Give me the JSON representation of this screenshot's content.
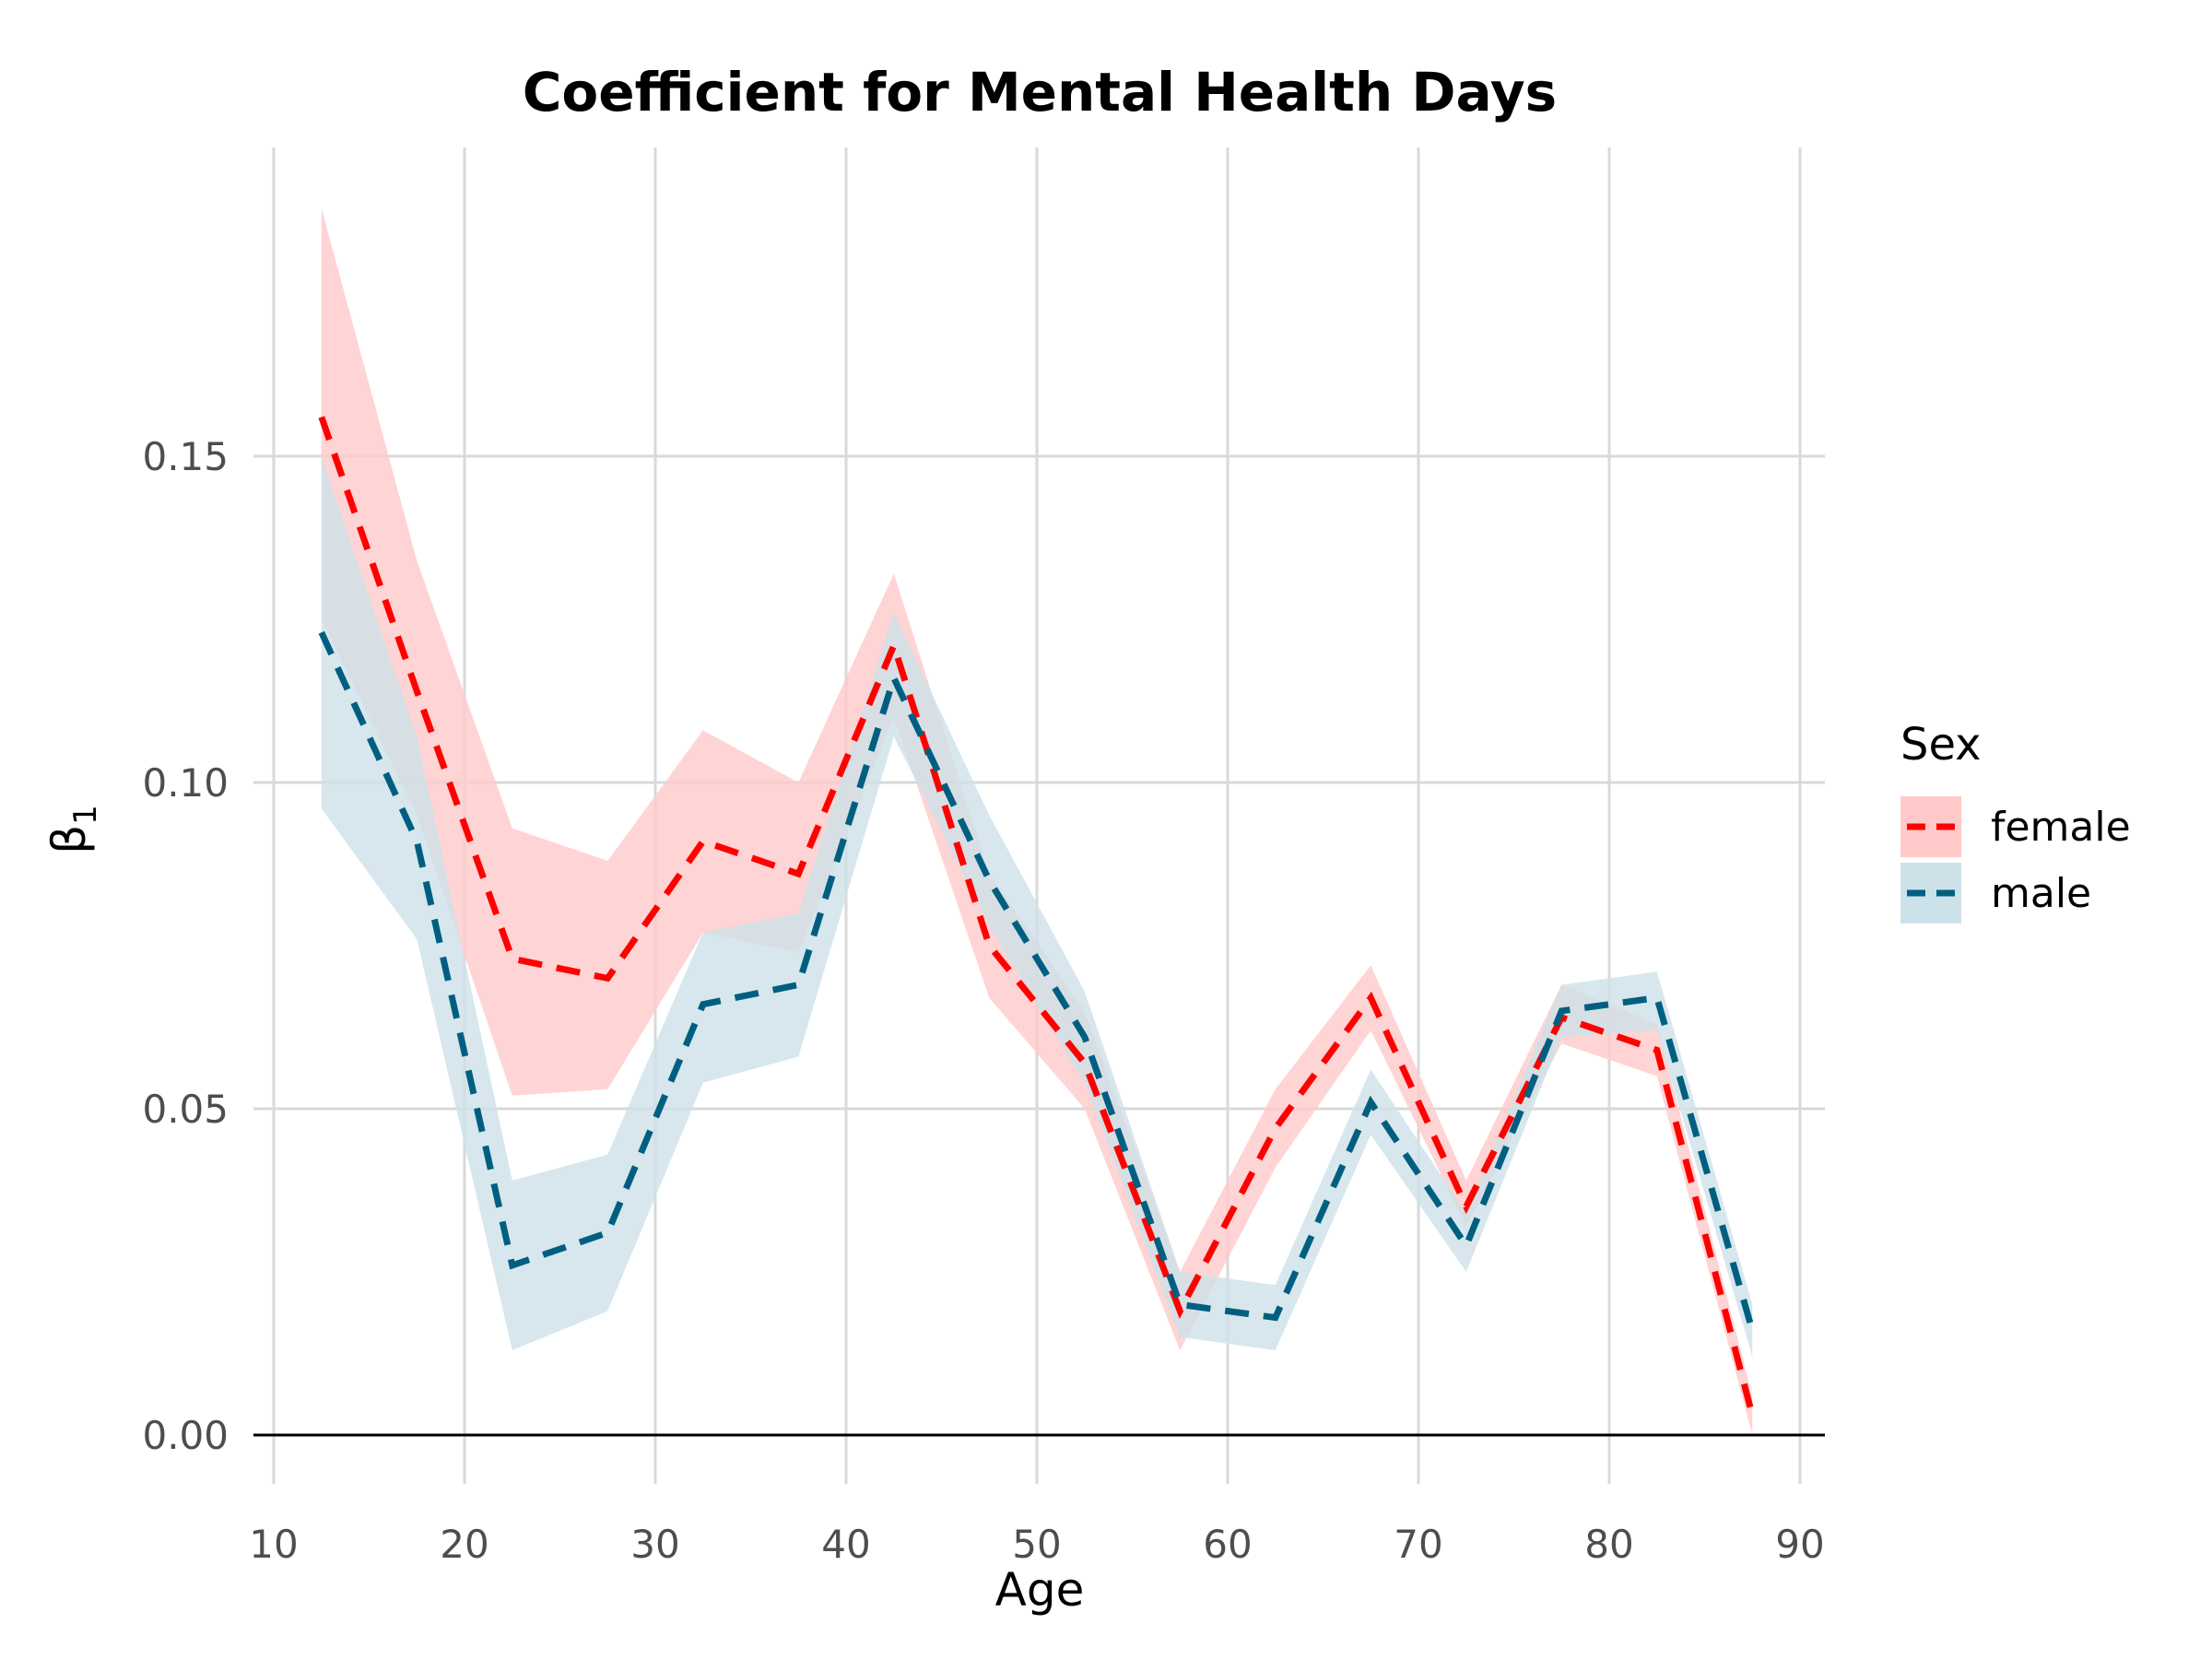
{
  "chart_data": {
    "type": "line",
    "title": "Coefficient for Mental Health Days",
    "xlabel": "Age",
    "ylabel": "β",
    "ylabel_subscript": "1",
    "xlim": [
      10,
      90
    ],
    "ylim": [
      -0.007,
      0.197
    ],
    "x_ticks": [
      10,
      20,
      30,
      40,
      50,
      60,
      70,
      80,
      90
    ],
    "x_tick_labels": [
      "10",
      "20",
      "30",
      "40",
      "50",
      "60",
      "70",
      "80",
      "90"
    ],
    "y_ticks": [
      0.0,
      0.05,
      0.1,
      0.15
    ],
    "y_tick_labels": [
      "0.00",
      "0.05",
      "0.10",
      "0.15"
    ],
    "grid": true,
    "legend": {
      "title": "Sex",
      "position": "right"
    },
    "x": [
      12.5,
      17.5,
      22.5,
      27.5,
      32.5,
      37.5,
      42.5,
      47.5,
      52.5,
      57.5,
      62.5,
      67.5,
      72.5,
      77.5,
      82.5,
      87.5
    ],
    "series": [
      {
        "name": "female",
        "line_color": "#ff0000",
        "band_color": "#ffc9c9",
        "values": [
          0.156,
          0.114,
          0.073,
          0.07,
          0.091,
          0.086,
          0.121,
          0.075,
          0.057,
          0.019,
          0.047,
          0.067,
          0.035,
          0.064,
          0.059,
          0.003
        ],
        "lower": [
          0.125,
          0.095,
          0.052,
          0.053,
          0.077,
          0.074,
          0.11,
          0.067,
          0.05,
          0.013,
          0.041,
          0.062,
          0.032,
          0.06,
          0.055,
          0.0
        ],
        "upper": [
          0.188,
          0.134,
          0.093,
          0.088,
          0.108,
          0.1,
          0.132,
          0.086,
          0.065,
          0.025,
          0.053,
          0.072,
          0.039,
          0.069,
          0.063,
          0.006
        ]
      },
      {
        "name": "male",
        "line_color": "#005f80",
        "band_color": "#cde1e8",
        "values": [
          0.123,
          0.091,
          0.026,
          0.031,
          0.066,
          0.069,
          0.116,
          0.085,
          0.061,
          0.02,
          0.018,
          0.051,
          0.029,
          0.065,
          0.067,
          0.016
        ],
        "lower": [
          0.096,
          0.076,
          0.013,
          0.019,
          0.054,
          0.058,
          0.107,
          0.078,
          0.054,
          0.015,
          0.013,
          0.046,
          0.025,
          0.061,
          0.062,
          0.012
        ],
        "upper": [
          0.15,
          0.107,
          0.039,
          0.043,
          0.077,
          0.08,
          0.126,
          0.095,
          0.068,
          0.025,
          0.023,
          0.056,
          0.034,
          0.069,
          0.071,
          0.02
        ]
      }
    ]
  }
}
